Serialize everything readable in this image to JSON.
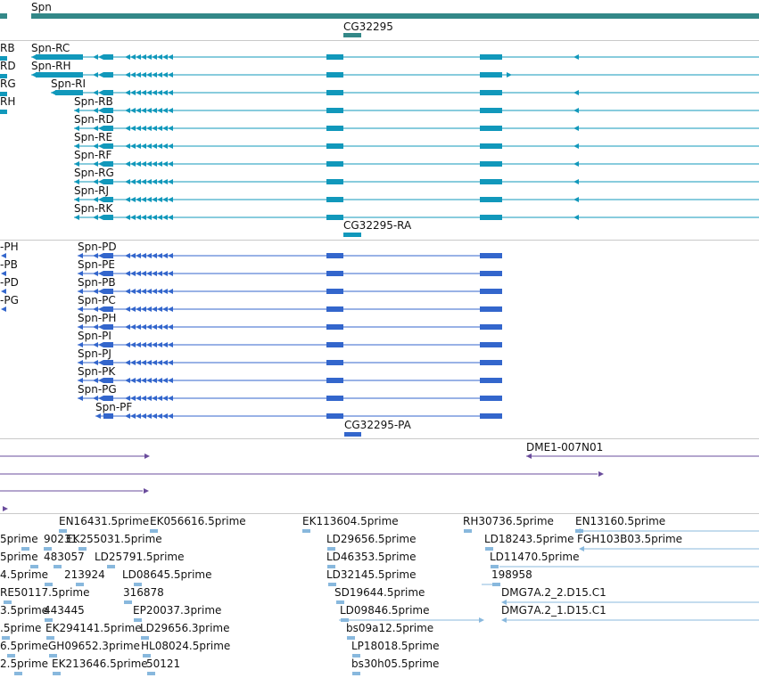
{
  "colors": {
    "gene": "#338888",
    "mrna": "#1198bb",
    "protein": "#3366cc",
    "est_match": "#6a4c9c",
    "est": "#88b8dd",
    "separator": "#c9c9c9",
    "text": "#111111"
  },
  "tracks": {
    "genes": {
      "items": [
        {
          "label": "Spn"
        },
        {
          "label": "CG32295"
        }
      ]
    },
    "transcripts": {
      "left_labels": [
        "RB",
        "RD",
        "RG",
        "RH"
      ],
      "items": [
        {
          "label": "Spn-RC"
        },
        {
          "label": "Spn-RH"
        },
        {
          "label": "Spn-RI"
        },
        {
          "label": "Spn-RB"
        },
        {
          "label": "Spn-RD"
        },
        {
          "label": "Spn-RE"
        },
        {
          "label": "Spn-RF"
        },
        {
          "label": "Spn-RG"
        },
        {
          "label": "Spn-RJ"
        },
        {
          "label": "Spn-RK"
        },
        {
          "label": "CG32295-RA"
        }
      ]
    },
    "proteins": {
      "left_labels": [
        "-PH",
        "-PB",
        "-PD",
        "-PG"
      ],
      "items": [
        {
          "label": "Spn-PD"
        },
        {
          "label": "Spn-PE"
        },
        {
          "label": "Spn-PB"
        },
        {
          "label": "Spn-PC"
        },
        {
          "label": "Spn-PH"
        },
        {
          "label": "Spn-PI"
        },
        {
          "label": "Spn-PJ"
        },
        {
          "label": "Spn-PK"
        },
        {
          "label": "Spn-PG"
        },
        {
          "label": "Spn-PF"
        },
        {
          "label": "CG32295-PA"
        }
      ]
    },
    "matches": {
      "items": [
        {
          "label": "DME1-007N01"
        }
      ]
    },
    "ests": {
      "items": [
        {
          "label": "EN16431.5prime"
        },
        {
          "label": "EK056616.5prime"
        },
        {
          "label": "EK113604.5prime"
        },
        {
          "label": "RH30736.5prime"
        },
        {
          "label": "EN13160.5prime"
        },
        {
          "label": "5prime"
        },
        {
          "label": "90231"
        },
        {
          "label": "EK255031.5prime"
        },
        {
          "label": "LD29656.5prime"
        },
        {
          "label": "LD18243.5prime"
        },
        {
          "label": "FGH103B03.5prime"
        },
        {
          "label": "5prime"
        },
        {
          "label": "483057"
        },
        {
          "label": "LD25791.5prime"
        },
        {
          "label": "LD46353.5prime"
        },
        {
          "label": "LD11470.5prime"
        },
        {
          "label": "4.5prime"
        },
        {
          "label": "213924"
        },
        {
          "label": "LD08645.5prime"
        },
        {
          "label": "LD32145.5prime"
        },
        {
          "label": "198958"
        },
        {
          "label": "RE50117.5prime"
        },
        {
          "label": "316878"
        },
        {
          "label": "SD19644.5prime"
        },
        {
          "label": "DMG7A.2_2.D15.C1"
        },
        {
          "label": "3.5prime"
        },
        {
          "label": "443445"
        },
        {
          "label": "EP20037.3prime"
        },
        {
          "label": "LD09846.5prime"
        },
        {
          "label": "DMG7A.2_1.D15.C1"
        },
        {
          "label": ".5prime"
        },
        {
          "label": "EK294141.5prime"
        },
        {
          "label": "LD29656.3prime"
        },
        {
          "label": "bs09a12.5prime"
        },
        {
          "label": "6.5prime"
        },
        {
          "label": "GH09652.3prime"
        },
        {
          "label": "HL08024.5prime"
        },
        {
          "label": "LP18018.5prime"
        },
        {
          "label": "2.5prime"
        },
        {
          "label": "EK213646.5prime"
        },
        {
          "label": "50121"
        },
        {
          "label": "bs30h05.5prime"
        }
      ]
    }
  }
}
